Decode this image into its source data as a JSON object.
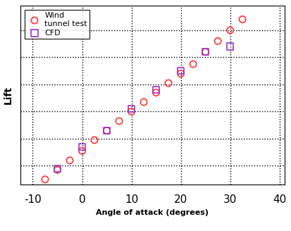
{
  "chart_data": {
    "type": "scatter",
    "x_label": "Angle of attack (degrees)",
    "y_label": "Lift",
    "xlim": [
      -12.5,
      41
    ],
    "xticks": [
      -10,
      0,
      10,
      20,
      30,
      40
    ],
    "ylim": [
      0.3,
      6.9
    ],
    "yticks": [
      1,
      2,
      3,
      4,
      5,
      6
    ],
    "tick_labels": "x",
    "grid": true,
    "legend": "upper left",
    "series": [
      {
        "name": "Wind\ntunnel test",
        "color": "#ff3333",
        "marker": "circle",
        "x": [
          -7.5,
          -5,
          -2.5,
          0,
          2.5,
          5,
          7.5,
          10,
          12.5,
          15,
          17.5,
          20,
          22.5,
          25,
          27.5,
          30,
          32.5
        ],
        "values": [
          0.5,
          0.85,
          1.2,
          1.55,
          1.95,
          2.3,
          2.65,
          3.0,
          3.35,
          3.7,
          4.05,
          4.4,
          4.75,
          5.2,
          5.6,
          6.0,
          6.4
        ]
      },
      {
        "name": "CFD",
        "color": "#9933cc",
        "marker": "square",
        "x": [
          -5,
          0,
          5,
          10,
          15,
          20,
          25,
          30
        ],
        "values": [
          0.9,
          1.7,
          2.3,
          3.1,
          3.8,
          4.5,
          5.2,
          5.4
        ]
      }
    ]
  }
}
